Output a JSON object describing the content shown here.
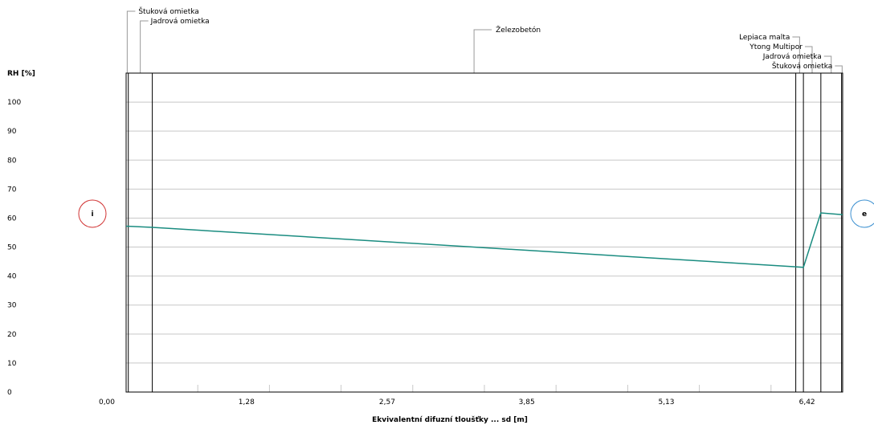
{
  "chart_data": {
    "type": "line",
    "ylabel": "RH [%]",
    "xlabel": "Ekvivalentní difuzní tloušťky ... sd [m]",
    "ylim": [
      0,
      110
    ],
    "xlim": [
      0,
      6.57
    ],
    "yticks": [
      0,
      10,
      20,
      30,
      40,
      50,
      60,
      70,
      80,
      90,
      100
    ],
    "xtick_labels": [
      "0,00",
      "1,28",
      "2,57",
      "3,85",
      "5,13",
      "6,42"
    ],
    "xtick_values": [
      0,
      1.28,
      2.57,
      3.85,
      5.13,
      6.42
    ],
    "grid": true,
    "layers": [
      {
        "name": "Štuková omietka",
        "from": 0.0,
        "to": 0.02
      },
      {
        "name": "Jadrová omietka",
        "from": 0.02,
        "to": 0.24
      },
      {
        "name": "Železobetón",
        "from": 0.24,
        "to": 6.14
      },
      {
        "name": "Lepiaca malta",
        "from": 6.14,
        "to": 6.21
      },
      {
        "name": "Ytong Multipor",
        "from": 6.21,
        "to": 6.37
      },
      {
        "name": "Jadrová omietka",
        "from": 6.37,
        "to": 6.56
      },
      {
        "name": "Štuková omietka",
        "from": 6.56,
        "to": 6.57
      }
    ],
    "series": [
      {
        "color": "#1a8c80",
        "x": [
          0.0,
          0.02,
          0.24,
          6.14,
          6.21,
          6.37,
          6.56,
          6.57
        ],
        "y": [
          57.2,
          57.2,
          56.8,
          43.2,
          43.0,
          61.8,
          61.2,
          61.2
        ]
      }
    ],
    "markers": {
      "interior": {
        "label": "i",
        "color": "#d03030"
      },
      "exterior": {
        "label": "e",
        "color": "#3a8fd0"
      }
    }
  }
}
